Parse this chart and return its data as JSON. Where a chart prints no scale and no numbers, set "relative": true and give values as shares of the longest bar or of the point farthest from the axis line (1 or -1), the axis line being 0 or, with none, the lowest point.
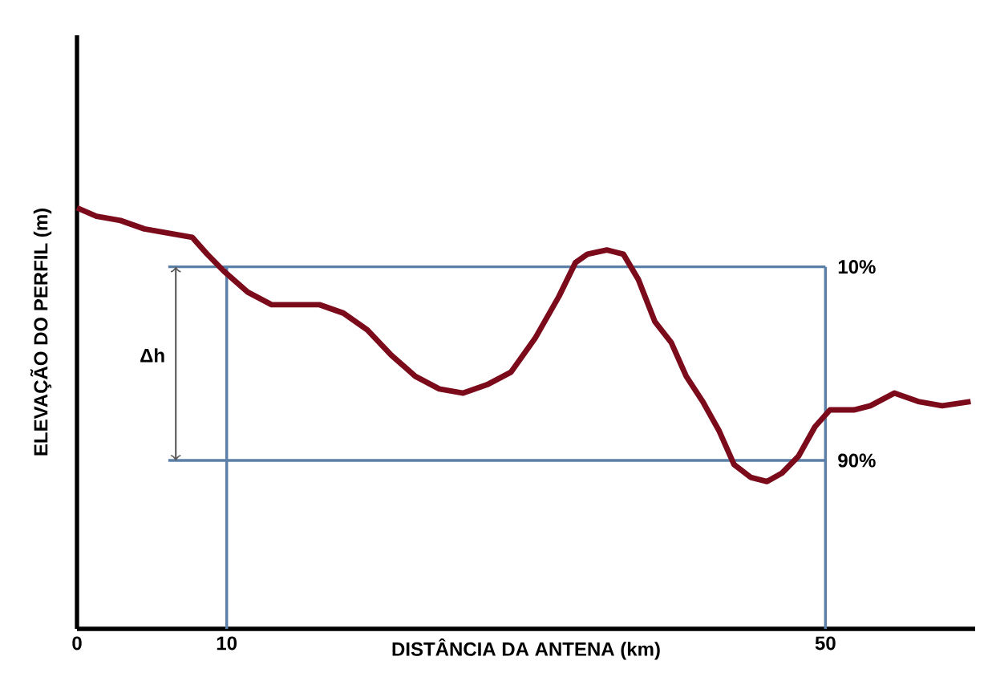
{
  "chart_data": {
    "type": "line",
    "relative": true,
    "xlabel": "DISTÂNCIA DA ANTENA (km)",
    "ylabel": "ELEVAÇÃO DO PERFIL (m)",
    "xlim": [
      0,
      60
    ],
    "xticks": [
      0,
      10,
      50
    ],
    "marker": "none",
    "line_style": "solid",
    "grid": false,
    "series": [
      {
        "color": "#7b0a1a",
        "x": [
          0,
          1.3,
          2.9,
          4.5,
          6.1,
          7.7,
          8.7,
          9.8,
          11.4,
          13.0,
          14.6,
          16.2,
          17.8,
          19.4,
          21.0,
          22.6,
          24.2,
          25.8,
          27.4,
          29.0,
          30.6,
          32.2,
          33.3,
          34.1,
          35.4,
          36.5,
          37.5,
          38.6,
          39.7,
          40.7,
          41.8,
          42.9,
          43.9,
          45.0,
          46.1,
          47.1,
          48.2,
          49.3,
          50.3,
          51.9,
          53.0,
          54.6,
          56.2,
          57.8,
          59.7
        ],
        "values": [
          1.0,
          0.98,
          0.97,
          0.95,
          0.94,
          0.93,
          0.89,
          0.85,
          0.8,
          0.77,
          0.77,
          0.77,
          0.75,
          0.71,
          0.65,
          0.6,
          0.57,
          0.56,
          0.58,
          0.61,
          0.69,
          0.79,
          0.87,
          0.89,
          0.9,
          0.89,
          0.83,
          0.73,
          0.68,
          0.6,
          0.54,
          0.47,
          0.39,
          0.36,
          0.35,
          0.37,
          0.41,
          0.48,
          0.52,
          0.52,
          0.53,
          0.56,
          0.54,
          0.53,
          0.54
        ]
      }
    ],
    "ref_lines": [
      {
        "axis": "x",
        "value": 10,
        "color": "#5b7fa6"
      },
      {
        "axis": "x",
        "value": 50,
        "color": "#5b7fa6"
      },
      {
        "axis": "y",
        "value": 0.86,
        "color": "#5b7fa6"
      },
      {
        "axis": "y",
        "value": 0.4,
        "color": "#5b7fa6"
      }
    ],
    "annotations": [
      "Δh",
      {
        "text": "10%",
        "x": 50,
        "y": 0.86
      },
      {
        "text": "90%",
        "x": 50,
        "y": 0.4
      }
    ]
  }
}
